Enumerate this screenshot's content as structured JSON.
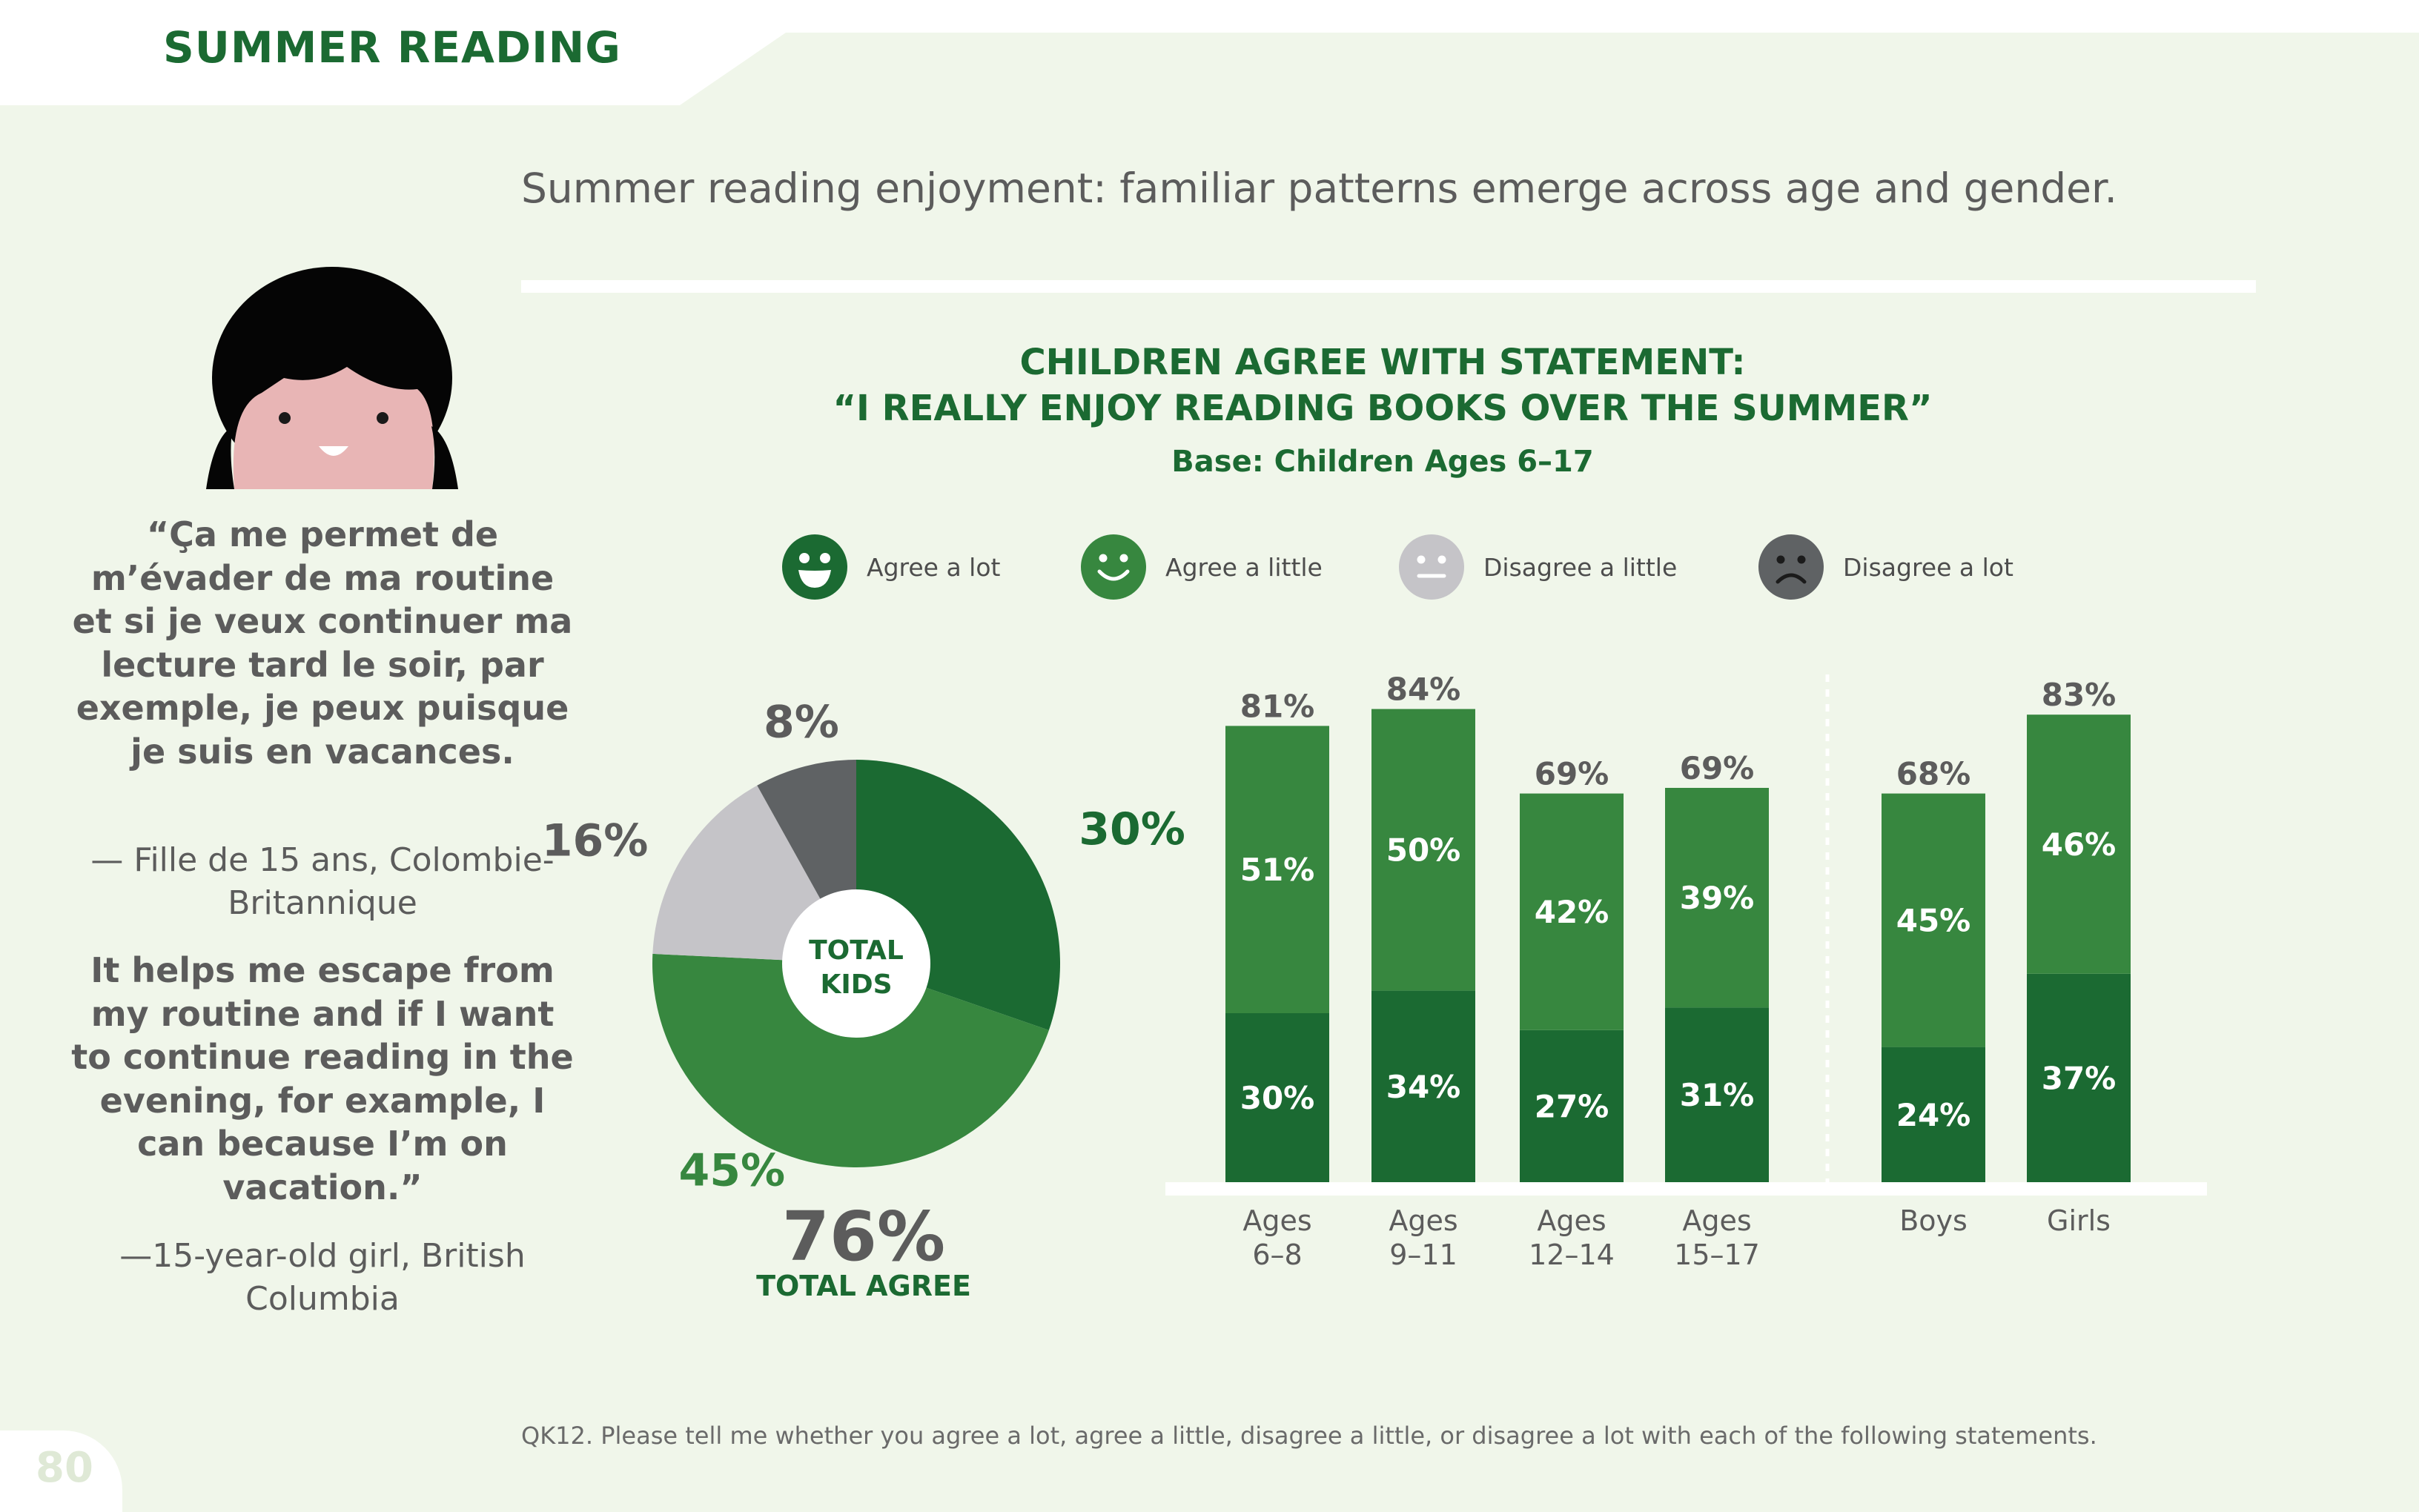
{
  "header": {
    "section_title": "SUMMER READING"
  },
  "headline": "Summer reading enjoyment: familiar patterns emerge across age and gender.",
  "chart_title": {
    "line1": "CHILDREN AGREE WITH STATEMENT:",
    "line2": "“I REALLY ENJOY READING BOOKS OVER THE SUMMER”",
    "base": "Base: Children Ages 6–17"
  },
  "legend": [
    {
      "label": "Agree a lot",
      "color": "#1b6a32",
      "icon": "happy-face-icon"
    },
    {
      "label": "Agree a little",
      "color": "#37873f",
      "icon": "smile-face-icon"
    },
    {
      "label": "Disagree a little",
      "color": "#c5c4c8",
      "icon": "neutral-face-icon"
    },
    {
      "label": "Disagree a lot",
      "color": "#5f6264",
      "icon": "sad-face-icon"
    }
  ],
  "quotes": {
    "french": "“Ça me permet de m’évader de ma routine et si je veux continuer ma lecture tard le soir, par exemple, je peux puisque je suis en vacances.",
    "french_attribution": "— Fille de 15 ans, Colombie-Britannique",
    "english": "It helps me escape from my routine and if I want to continue reading in the evening, for example, I can because I’m on vacation.”",
    "english_attribution": "—15-year-old girl, British Columbia"
  },
  "footnote": "QK12. Please tell me whether you agree a lot, agree a little, disagree a little, or disagree a lot with each of the following statements.",
  "page_number": "80",
  "chart_data": [
    {
      "type": "pie",
      "center_label": [
        "TOTAL",
        "KIDS"
      ],
      "slices": [
        {
          "label": "30%",
          "value": 30,
          "category": "Agree a lot",
          "color": "#1b6a32"
        },
        {
          "label": "45%",
          "value": 45,
          "category": "Agree a little",
          "color": "#37873f"
        },
        {
          "label": "16%",
          "value": 16,
          "category": "Disagree a little",
          "color": "#c5c4c8"
        },
        {
          "label": "8%",
          "value": 8,
          "category": "Disagree a lot",
          "color": "#5f6264"
        }
      ],
      "total_value": "76%",
      "total_label": "TOTAL AGREE"
    },
    {
      "type": "bar",
      "stacked": true,
      "categories": [
        [
          "Ages",
          "6–8"
        ],
        [
          "Ages",
          "9–11"
        ],
        [
          "Ages",
          "12–14"
        ],
        [
          "Ages",
          "15–17"
        ],
        [
          "Boys"
        ],
        [
          "Girls"
        ]
      ],
      "series": [
        {
          "name": "Agree a lot",
          "color": "#1b6a32",
          "values": [
            30,
            34,
            27,
            31,
            24,
            37
          ]
        },
        {
          "name": "Agree a little",
          "color": "#37873f",
          "values": [
            51,
            50,
            42,
            39,
            45,
            46
          ]
        }
      ],
      "totals": [
        81,
        84,
        69,
        69,
        68,
        83
      ],
      "value_suffix": "%",
      "ylim": [
        0,
        90
      ],
      "grid": false
    }
  ]
}
